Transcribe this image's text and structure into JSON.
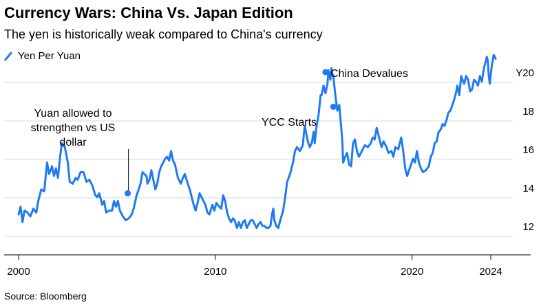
{
  "title": "Currency Wars: China Vs. Japan Edition",
  "subtitle": "The yen is historically weak compared to China's currency",
  "source": "Source: Bloomberg",
  "colors": {
    "line": "#1f7af5",
    "grid": "#d9d9d9",
    "axis": "#000000",
    "text": "#000000"
  },
  "chart_data": {
    "type": "line",
    "series": [
      {
        "name": "Yen Per Yuan",
        "points": [
          [
            2000.0,
            12.6
          ],
          [
            2000.1,
            13.0
          ],
          [
            2000.2,
            12.2
          ],
          [
            2000.3,
            12.8
          ],
          [
            2000.45,
            12.7
          ],
          [
            2000.6,
            12.5
          ],
          [
            2000.75,
            12.9
          ],
          [
            2000.9,
            12.7
          ],
          [
            2001.0,
            13.3
          ],
          [
            2001.15,
            13.9
          ],
          [
            2001.3,
            13.8
          ],
          [
            2001.45,
            15.3
          ],
          [
            2001.55,
            14.7
          ],
          [
            2001.7,
            15.1
          ],
          [
            2001.8,
            14.6
          ],
          [
            2001.9,
            15.0
          ],
          [
            2002.0,
            14.5
          ],
          [
            2002.1,
            15.5
          ],
          [
            2002.2,
            16.3
          ],
          [
            2002.35,
            16.1
          ],
          [
            2002.5,
            15.3
          ],
          [
            2002.6,
            14.3
          ],
          [
            2002.75,
            14.2
          ],
          [
            2002.9,
            14.5
          ],
          [
            2003.0,
            14.4
          ],
          [
            2003.15,
            14.8
          ],
          [
            2003.3,
            14.8
          ],
          [
            2003.45,
            14.3
          ],
          [
            2003.6,
            14.4
          ],
          [
            2003.75,
            14.1
          ],
          [
            2003.9,
            13.6
          ],
          [
            2004.0,
            13.5
          ],
          [
            2004.1,
            13.7
          ],
          [
            2004.25,
            13.1
          ],
          [
            2004.35,
            13.3
          ],
          [
            2004.45,
            12.7
          ],
          [
            2004.6,
            12.8
          ],
          [
            2004.75,
            12.8
          ],
          [
            2004.85,
            13.3
          ],
          [
            2004.95,
            13.0
          ],
          [
            2005.05,
            13.3
          ],
          [
            2005.15,
            12.8
          ],
          [
            2005.3,
            12.5
          ],
          [
            2005.45,
            12.3
          ],
          [
            2005.6,
            12.4
          ],
          [
            2005.75,
            12.6
          ],
          [
            2005.85,
            12.9
          ],
          [
            2006.0,
            13.6
          ],
          [
            2006.1,
            13.9
          ],
          [
            2006.2,
            14.2
          ],
          [
            2006.3,
            14.8
          ],
          [
            2006.4,
            14.7
          ],
          [
            2006.5,
            14.6
          ],
          [
            2006.55,
            14.2
          ],
          [
            2006.65,
            14.4
          ],
          [
            2006.75,
            14.9
          ],
          [
            2006.85,
            14.4
          ],
          [
            2006.95,
            13.9
          ],
          [
            2007.05,
            14.2
          ],
          [
            2007.15,
            14.8
          ],
          [
            2007.25,
            15.1
          ],
          [
            2007.35,
            15.3
          ],
          [
            2007.45,
            15.5
          ],
          [
            2007.55,
            15.6
          ],
          [
            2007.65,
            15.4
          ],
          [
            2007.75,
            15.9
          ],
          [
            2007.85,
            15.4
          ],
          [
            2007.95,
            15.2
          ],
          [
            2008.1,
            14.5
          ],
          [
            2008.25,
            14.2
          ],
          [
            2008.35,
            14.5
          ],
          [
            2008.45,
            14.7
          ],
          [
            2008.6,
            14.2
          ],
          [
            2008.7,
            13.9
          ],
          [
            2008.8,
            13.5
          ],
          [
            2008.9,
            13.1
          ],
          [
            2009.0,
            12.8
          ],
          [
            2009.1,
            13.2
          ],
          [
            2009.2,
            13.7
          ],
          [
            2009.3,
            13.5
          ],
          [
            2009.4,
            13.3
          ],
          [
            2009.5,
            13.1
          ],
          [
            2009.6,
            12.7
          ],
          [
            2009.7,
            12.6
          ],
          [
            2009.85,
            13.1
          ],
          [
            2009.95,
            12.8
          ],
          [
            2010.05,
            13.2
          ],
          [
            2010.2,
            13.0
          ],
          [
            2010.3,
            12.9
          ],
          [
            2010.4,
            13.6
          ],
          [
            2010.5,
            13.3
          ],
          [
            2010.6,
            12.7
          ],
          [
            2010.7,
            12.4
          ],
          [
            2010.8,
            12.2
          ],
          [
            2010.9,
            12.4
          ],
          [
            2010.98,
            12.3
          ],
          [
            2011.1,
            11.9
          ],
          [
            2011.2,
            12.2
          ],
          [
            2011.3,
            11.9
          ],
          [
            2011.4,
            12.2
          ],
          [
            2011.5,
            12.3
          ],
          [
            2011.6,
            11.9
          ],
          [
            2011.7,
            12.1
          ],
          [
            2011.8,
            12.3
          ],
          [
            2011.9,
            12.3
          ],
          [
            2012.0,
            12.1
          ],
          [
            2012.1,
            11.9
          ],
          [
            2012.2,
            12.1
          ],
          [
            2012.3,
            12.2
          ],
          [
            2012.4,
            12.0
          ],
          [
            2012.5,
            12.0
          ],
          [
            2012.6,
            11.9
          ],
          [
            2012.7,
            11.9
          ],
          [
            2012.8,
            12.0
          ],
          [
            2012.9,
            12.7
          ],
          [
            2012.95,
            12.9
          ],
          [
            2013.0,
            12.3
          ],
          [
            2013.1,
            12.0
          ],
          [
            2013.2,
            11.9
          ],
          [
            2013.3,
            12.3
          ],
          [
            2013.45,
            12.8
          ],
          [
            2013.55,
            13.5
          ],
          [
            2013.65,
            14.3
          ],
          [
            2013.8,
            14.7
          ],
          [
            2013.95,
            15.3
          ],
          [
            2014.05,
            15.9
          ],
          [
            2014.15,
            16.1
          ],
          [
            2014.3,
            15.9
          ],
          [
            2014.45,
            16.2
          ],
          [
            2014.5,
            16.8
          ],
          [
            2014.55,
            17.2
          ],
          [
            2014.7,
            16.4
          ],
          [
            2014.8,
            16.1
          ],
          [
            2014.9,
            16.3
          ],
          [
            2015.0,
            16.9
          ],
          [
            2015.05,
            16.3
          ],
          [
            2015.15,
            17.2
          ],
          [
            2015.25,
            17.8
          ],
          [
            2015.35,
            18.8
          ],
          [
            2015.4,
            18.8
          ],
          [
            2015.5,
            19.3
          ],
          [
            2015.6,
            18.9
          ],
          [
            2015.7,
            19.4
          ],
          [
            2015.75,
            20.1
          ],
          [
            2015.85,
            19.6
          ],
          [
            2015.9,
            20.2
          ],
          [
            2015.95,
            19.9
          ],
          [
            2016.0,
            19.8
          ],
          [
            2016.1,
            18.8
          ],
          [
            2016.2,
            18.0
          ],
          [
            2016.3,
            18.3
          ],
          [
            2016.4,
            17.1
          ],
          [
            2016.45,
            16.5
          ],
          [
            2016.5,
            15.3
          ],
          [
            2016.6,
            15.6
          ],
          [
            2016.7,
            15.8
          ],
          [
            2016.8,
            15.2
          ],
          [
            2016.9,
            15.1
          ],
          [
            2017.0,
            16.3
          ],
          [
            2017.1,
            16.5
          ],
          [
            2017.2,
            15.9
          ],
          [
            2017.3,
            15.6
          ],
          [
            2017.45,
            15.9
          ],
          [
            2017.6,
            16.2
          ],
          [
            2017.75,
            16.1
          ],
          [
            2017.9,
            16.3
          ],
          [
            2018.0,
            16.6
          ],
          [
            2018.1,
            16.5
          ],
          [
            2018.2,
            17.1
          ],
          [
            2018.35,
            16.5
          ],
          [
            2018.45,
            16.1
          ],
          [
            2018.55,
            16.4
          ],
          [
            2018.7,
            16.1
          ],
          [
            2018.8,
            15.8
          ],
          [
            2018.95,
            15.9
          ],
          [
            2019.05,
            15.6
          ],
          [
            2019.15,
            16.1
          ],
          [
            2019.3,
            16.0
          ],
          [
            2019.45,
            16.6
          ],
          [
            2019.55,
            15.9
          ],
          [
            2019.65,
            15.0
          ],
          [
            2019.75,
            14.6
          ],
          [
            2019.85,
            14.9
          ],
          [
            2019.95,
            15.2
          ],
          [
            2020.05,
            15.5
          ],
          [
            2020.15,
            15.3
          ],
          [
            2020.25,
            15.9
          ],
          [
            2020.35,
            15.3
          ],
          [
            2020.45,
            15.0
          ],
          [
            2020.55,
            14.8
          ],
          [
            2020.7,
            14.9
          ],
          [
            2020.85,
            15.1
          ],
          [
            2020.95,
            15.6
          ],
          [
            2021.05,
            15.8
          ],
          [
            2021.15,
            16.3
          ],
          [
            2021.25,
            16.4
          ],
          [
            2021.35,
            16.9
          ],
          [
            2021.45,
            17.0
          ],
          [
            2021.55,
            17.3
          ],
          [
            2021.65,
            17.2
          ],
          [
            2021.75,
            17.5
          ],
          [
            2021.85,
            17.9
          ],
          [
            2021.95,
            18.0
          ],
          [
            2022.05,
            18.3
          ],
          [
            2022.15,
            18.6
          ],
          [
            2022.25,
            19.0
          ],
          [
            2022.3,
            19.3
          ],
          [
            2022.4,
            18.8
          ],
          [
            2022.5,
            19.8
          ],
          [
            2022.6,
            19.5
          ],
          [
            2022.65,
            19.4
          ],
          [
            2022.75,
            19.8
          ],
          [
            2022.85,
            19.6
          ],
          [
            2022.95,
            19.0
          ],
          [
            2023.05,
            19.1
          ],
          [
            2023.15,
            19.6
          ],
          [
            2023.25,
            19.5
          ],
          [
            2023.35,
            19.3
          ],
          [
            2023.45,
            19.8
          ],
          [
            2023.55,
            19.5
          ],
          [
            2023.65,
            20.2
          ],
          [
            2023.75,
            20.6
          ],
          [
            2023.8,
            20.8
          ],
          [
            2023.85,
            20.6
          ],
          [
            2023.9,
            19.8
          ],
          [
            2023.95,
            19.4
          ],
          [
            2024.05,
            20.3
          ],
          [
            2024.15,
            20.9
          ],
          [
            2024.25,
            20.7
          ]
        ]
      }
    ],
    "x_ticks": [
      2000,
      2010,
      2020,
      2024
    ],
    "y_ticks": [
      {
        "value": 12,
        "label": "12"
      },
      {
        "value": 14,
        "label": "14"
      },
      {
        "value": 16,
        "label": "16"
      },
      {
        "value": 18,
        "label": "18"
      },
      {
        "value": 20,
        "label": "Y20"
      }
    ],
    "xlim": [
      2000,
      2025
    ],
    "ylim": [
      11.4,
      21.4
    ],
    "grid": true,
    "y_axis_side": "right",
    "legend_position": "top-left",
    "annotations": [
      {
        "id": "yuan-strengthen",
        "lines": [
          "Yuan allowed to",
          "strengthen vs US",
          "dollar"
        ],
        "x": 2005.55,
        "y": 13.7,
        "marker": true,
        "leader": true
      },
      {
        "id": "ycc-starts",
        "lines": [
          "YCC Starts"
        ],
        "x": 2016.0,
        "y": 18.2,
        "marker": true,
        "leader": false
      },
      {
        "id": "china-devalues",
        "lines": [
          "China Devalues"
        ],
        "x": 2015.6,
        "y": 20.0,
        "marker": true,
        "leader": false
      }
    ]
  }
}
